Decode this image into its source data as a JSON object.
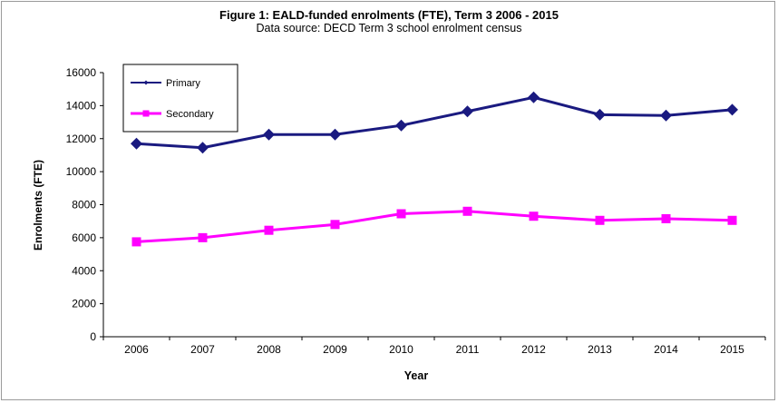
{
  "chart_data": {
    "type": "line",
    "title": "Figure 1: EALD-funded enrolments (FTE), Term 3 2006 - 2015",
    "subtitle": "Data source: DECD Term 3 school enrolment census",
    "xlabel": "Year",
    "ylabel": "Enrolments (FTE)",
    "ylim": [
      0,
      16000
    ],
    "ytick_step": 2000,
    "yticks": [
      "0",
      "2000",
      "4000",
      "6000",
      "8000",
      "10000",
      "12000",
      "14000",
      "16000"
    ],
    "grid": false,
    "legend_position": "top-left",
    "categories": [
      "2006",
      "2007",
      "2008",
      "2009",
      "2010",
      "2011",
      "2012",
      "2013",
      "2014",
      "2015"
    ],
    "series": [
      {
        "name": "Primary",
        "color": "#1a1a80",
        "marker": "diamond",
        "values": [
          11700,
          11450,
          12250,
          12250,
          12800,
          13650,
          14500,
          13450,
          13400,
          13750
        ]
      },
      {
        "name": "Secondary",
        "color": "#ff00ff",
        "marker": "square",
        "values": [
          5750,
          6000,
          6450,
          6800,
          7450,
          7600,
          7300,
          7050,
          7150,
          7050
        ]
      }
    ]
  }
}
